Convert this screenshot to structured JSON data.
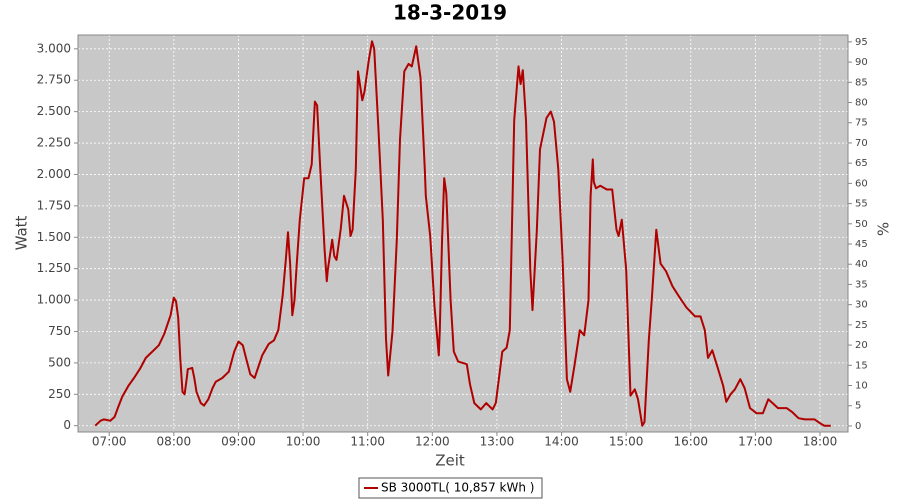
{
  "chart_data": {
    "type": "line",
    "title": "18-3-2019",
    "x_label": "Zeit",
    "y_label": "Watt",
    "y2_label": "%",
    "legend": "bottom",
    "grid": true,
    "xlim": [
      "06:31",
      "18:26"
    ],
    "xticks": [
      "07:00",
      "08:00",
      "09:00",
      "10:00",
      "11:00",
      "12:00",
      "13:00",
      "14:00",
      "15:00",
      "16:00",
      "17:00",
      "18:00"
    ],
    "ylim": [
      -50,
      3110
    ],
    "yticks": [
      0,
      250,
      500,
      750,
      {
        "value": 1000,
        "label": "1.000"
      },
      {
        "value": 1250,
        "label": "1.250"
      },
      {
        "value": 1500,
        "label": "1.500"
      },
      {
        "value": 1750,
        "label": "1.750"
      },
      {
        "value": 2000,
        "label": "2.000"
      },
      {
        "value": 2250,
        "label": "2.250"
      },
      {
        "value": 2500,
        "label": "2.500"
      },
      {
        "value": 2750,
        "label": "2.750"
      },
      {
        "value": 3000,
        "label": "3.000"
      }
    ],
    "y2lim": [
      -1.5,
      96.7
    ],
    "y2ticks": [
      0,
      5,
      10,
      15,
      20,
      25,
      30,
      35,
      40,
      45,
      50,
      55,
      60,
      65,
      70,
      75,
      80,
      85,
      90,
      95
    ],
    "x": [
      "06:47",
      "06:52",
      "06:55",
      "07:01",
      "07:05",
      "07:08",
      "07:12",
      "07:18",
      "07:23",
      "07:29",
      "07:34",
      "07:40",
      "07:46",
      "07:51",
      "07:57",
      "08:00",
      "08:02",
      "08:04",
      "08:06",
      "08:08",
      "08:10",
      "08:12",
      "08:13",
      "08:17",
      "08:19",
      "08:21",
      "08:25",
      "08:28",
      "08:32",
      "08:36",
      "08:39",
      "08:45",
      "08:51",
      "08:56",
      "09:00",
      "09:04",
      "09:07",
      "09:11",
      "09:15",
      "09:22",
      "09:28",
      "09:33",
      "09:37",
      "09:41",
      "09:44",
      "09:46",
      "09:48",
      "09:50",
      "09:52",
      "09:54",
      "09:57",
      "10:01",
      "10:05",
      "10:08",
      "10:11",
      "10:13",
      "10:16",
      "10:20",
      "10:22",
      "10:23",
      "10:27",
      "10:29",
      "10:31",
      "10:35",
      "10:38",
      "10:42",
      "10:44",
      "10:46",
      "10:49",
      "10:51",
      "10:55",
      "10:57",
      "11:01",
      "11:04",
      "11:06",
      "11:10",
      "11:14",
      "11:17",
      "11:19",
      "11:23",
      "11:27",
      "11:30",
      "11:34",
      "11:38",
      "11:41",
      "11:45",
      "11:49",
      "11:53",
      "11:54",
      "11:58",
      "12:02",
      "12:06",
      "12:07",
      "12:09",
      "12:11",
      "12:13",
      "12:17",
      "12:20",
      "12:24",
      "12:32",
      "12:35",
      "12:39",
      "12:45",
      "12:50",
      "12:56",
      "12:59",
      "13:05",
      "13:09",
      "13:12",
      "13:16",
      "13:20",
      "13:22",
      "13:24",
      "13:27",
      "13:31",
      "13:33",
      "13:37",
      "13:40",
      "13:46",
      "13:50",
      "13:53",
      "13:57",
      "14:01",
      "14:05",
      "14:08",
      "14:12",
      "14:17",
      "14:21",
      "14:25",
      "14:27",
      "14:29",
      "14:30",
      "14:32",
      "14:36",
      "14:42",
      "14:47",
      "14:51",
      "14:53",
      "14:56",
      "15:00",
      "15:04",
      "15:08",
      "15:11",
      "15:15",
      "15:17",
      "15:21",
      "15:24",
      "15:28",
      "15:30",
      "15:32",
      "15:37",
      "15:43",
      "15:49",
      "15:56",
      "16:04",
      "16:09",
      "16:13",
      "16:16",
      "16:20",
      "16:24",
      "16:30",
      "16:33",
      "16:37",
      "16:41",
      "16:46",
      "16:50",
      "16:55",
      "17:01",
      "17:07",
      "17:12",
      "17:16",
      "17:21",
      "17:29",
      "17:34",
      "17:40",
      "17:46",
      "17:55",
      "18:00",
      "18:04",
      "18:10"
    ],
    "series": [
      {
        "name": "SB 3000TL( 10,857 kWh )",
        "color": "#b00000",
        "values": [
          0,
          40,
          50,
          40,
          70,
          140,
          230,
          320,
          380,
          460,
          540,
          590,
          640,
          730,
          880,
          1020,
          990,
          860,
          530,
          270,
          250,
          380,
          450,
          460,
          380,
          270,
          180,
          160,
          210,
          300,
          350,
          380,
          430,
          590,
          670,
          640,
          540,
          410,
          380,
          560,
          650,
          680,
          760,
          1030,
          1320,
          1540,
          1280,
          880,
          1000,
          1270,
          1640,
          1970,
          1970,
          2080,
          2580,
          2550,
          2040,
          1400,
          1150,
          1240,
          1480,
          1350,
          1320,
          1570,
          1830,
          1720,
          1510,
          1560,
          2040,
          2820,
          2590,
          2660,
          2910,
          3060,
          3000,
          2350,
          1640,
          690,
          400,
          750,
          1480,
          2280,
          2820,
          2880,
          2860,
          3020,
          2770,
          2040,
          1830,
          1510,
          950,
          560,
          760,
          1460,
          1970,
          1850,
          1000,
          590,
          510,
          490,
          330,
          180,
          130,
          180,
          130,
          180,
          590,
          620,
          760,
          2430,
          2860,
          2720,
          2830,
          2430,
          1240,
          920,
          1550,
          2200,
          2450,
          2500,
          2420,
          2040,
          1320,
          370,
          270,
          480,
          760,
          720,
          1000,
          1830,
          2120,
          1940,
          1890,
          1910,
          1880,
          1880,
          1560,
          1510,
          1640,
          1240,
          240,
          290,
          210,
          0,
          30,
          680,
          1030,
          1560,
          1420,
          1290,
          1230,
          1110,
          1030,
          940,
          870,
          870,
          760,
          540,
          600,
          490,
          320,
          190,
          250,
          290,
          370,
          300,
          140,
          100,
          100,
          210,
          180,
          140,
          140,
          110,
          60,
          50,
          50,
          20,
          0,
          0
        ]
      }
    ]
  }
}
